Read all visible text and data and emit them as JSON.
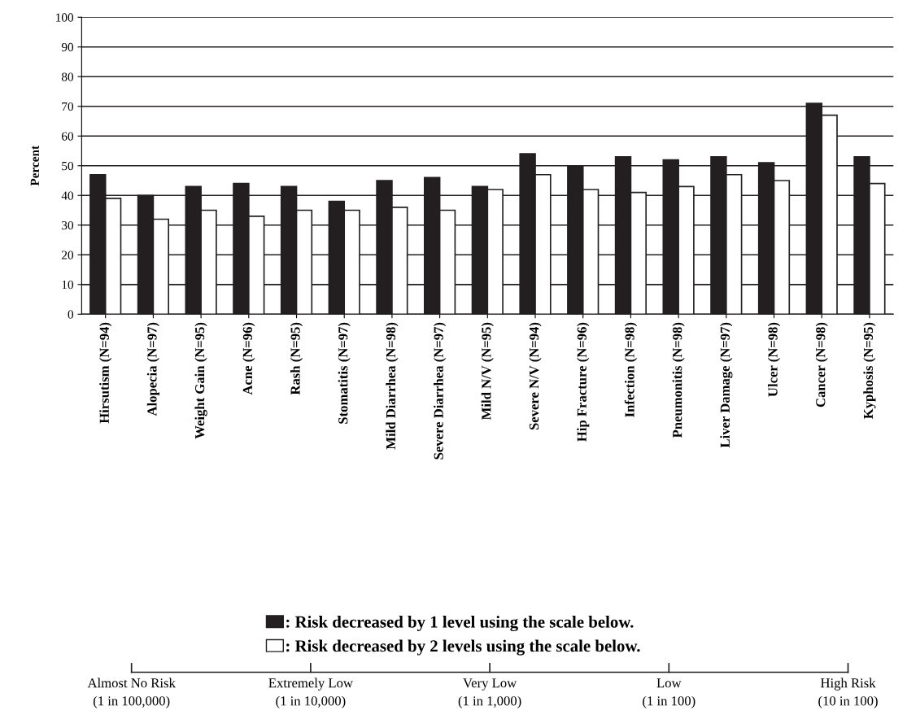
{
  "chart_data": {
    "type": "bar",
    "ylabel": "Percent",
    "categories": [
      "Hirsutism (N=94)",
      "Alopecia (N=97)",
      "Weight Gain (N=95)",
      "Acne (N=96)",
      "Rash (N=95)",
      "Stomatitis (N=97)",
      "Mild Diarrhea (N=98)",
      "Severe Diarrhea (N=97)",
      "Mild N/V (N=95)",
      "Severe N/V (N=94)",
      "Hip Fracture (N=96)",
      "Infection (N=98)",
      "Pneumonitis (N=98)",
      "Liver Damage (N=97)",
      "Ulcer (N=98)",
      "Cancer (N=98)",
      "Kyphosis (N=95)"
    ],
    "series": [
      {
        "name": ": Risk decreased by 1 level using the scale below.",
        "color": "#231f20",
        "values": [
          47,
          40,
          43,
          44,
          43,
          38,
          45,
          46,
          43,
          54,
          50,
          53,
          52,
          53,
          51,
          71,
          53
        ]
      },
      {
        "name": ": Risk decreased by 2 levels using the scale below.",
        "color": "#ffffff",
        "values": [
          39,
          32,
          35,
          33,
          35,
          35,
          36,
          35,
          42,
          47,
          42,
          41,
          43,
          47,
          45,
          67,
          44
        ]
      }
    ],
    "ylim": [
      0,
      100
    ],
    "yticks": [
      0,
      10,
      20,
      30,
      40,
      50,
      60,
      70,
      80,
      90,
      100
    ],
    "grid": "y",
    "legend": "bottom",
    "annotations": [
      "Almost No Risk\n(1 in 100,000)",
      "Extremely Low\n(1 in 10,000)",
      "Very Low\n(1 in 1,000)",
      "Low\n(1 in 100)",
      "High Risk\n(10 in 100)"
    ]
  }
}
